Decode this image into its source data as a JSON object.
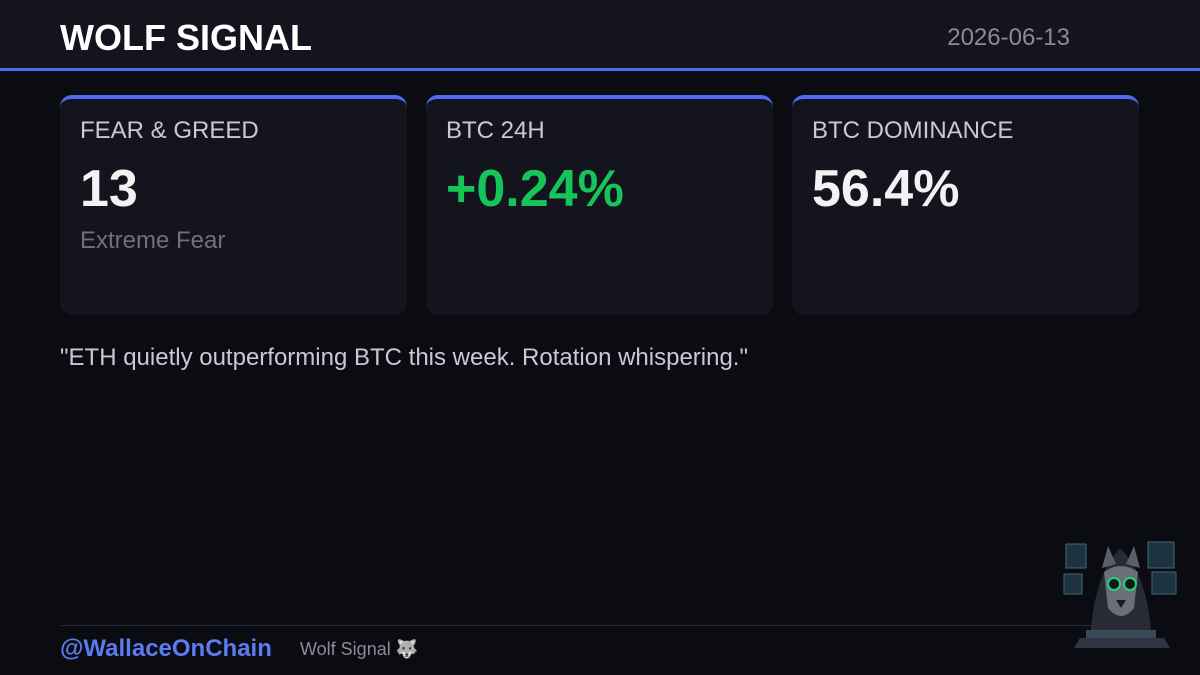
{
  "header": {
    "title": "WOLF SIGNAL",
    "date": "2026-06-13"
  },
  "cards": [
    {
      "label": "FEAR & GREED",
      "value": "13",
      "subtitle": "Extreme Fear",
      "tone": "neutral"
    },
    {
      "label": "BTC 24H",
      "value": "+0.24%",
      "tone": "positive"
    },
    {
      "label": "BTC DOMINANCE",
      "value": "56.4%",
      "tone": "neutral"
    }
  ],
  "quote": "\"ETH quietly outperforming BTC this week. Rotation whispering.\"",
  "footer": {
    "handle": "@WallaceOnChain",
    "brand": "Wolf Signal 🐺"
  }
}
